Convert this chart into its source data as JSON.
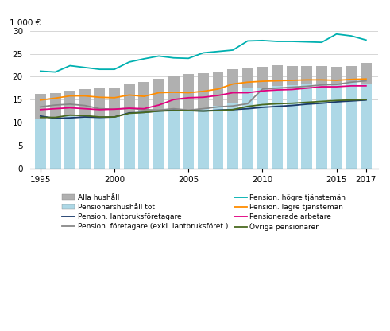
{
  "years": [
    1995,
    1996,
    1997,
    1998,
    1999,
    2000,
    2001,
    2002,
    2003,
    2004,
    2005,
    2006,
    2007,
    2008,
    2009,
    2010,
    2011,
    2012,
    2013,
    2014,
    2015,
    2016,
    2017
  ],
  "alla_hushall": [
    16.3,
    16.5,
    16.9,
    17.2,
    17.5,
    17.6,
    18.5,
    18.9,
    19.5,
    20.1,
    20.6,
    20.8,
    21.0,
    21.7,
    21.8,
    22.2,
    22.5,
    22.3,
    22.4,
    22.3,
    22.2,
    22.3,
    23.0
  ],
  "pensionshushall": [
    10.8,
    11.0,
    11.3,
    11.2,
    11.1,
    11.2,
    12.1,
    12.5,
    12.6,
    12.8,
    12.6,
    13.0,
    13.7,
    14.2,
    17.4,
    17.6,
    18.0,
    18.2,
    18.3,
    18.4,
    18.2,
    18.8,
    18.5
  ],
  "lantbruksforetagare": [
    11.4,
    10.9,
    11.0,
    11.2,
    11.1,
    11.2,
    12.1,
    12.2,
    12.5,
    12.7,
    12.6,
    12.5,
    12.7,
    12.8,
    13.0,
    13.3,
    13.5,
    13.7,
    14.0,
    14.2,
    14.5,
    14.7,
    14.9
  ],
  "foretagare": [
    13.4,
    13.8,
    14.0,
    13.7,
    13.0,
    12.9,
    13.1,
    12.8,
    12.7,
    13.0,
    12.7,
    13.0,
    13.4,
    13.6,
    14.1,
    17.3,
    17.5,
    17.7,
    17.9,
    18.2,
    18.3,
    18.8,
    19.1
  ],
  "hogre_tjansteman": [
    21.2,
    21.0,
    22.4,
    22.0,
    21.6,
    21.6,
    23.2,
    23.9,
    24.5,
    24.1,
    24.0,
    25.2,
    25.5,
    25.8,
    27.8,
    27.9,
    27.7,
    27.7,
    27.6,
    27.5,
    29.3,
    28.9,
    28.0
  ],
  "lagre_tjansteman": [
    14.9,
    15.3,
    15.8,
    15.8,
    15.5,
    15.4,
    16.0,
    15.7,
    16.5,
    16.6,
    16.5,
    16.8,
    17.3,
    18.4,
    18.8,
    19.0,
    19.1,
    19.2,
    19.3,
    19.3,
    19.2,
    19.4,
    19.5
  ],
  "pensionerade_arbetare": [
    12.8,
    13.0,
    13.2,
    13.0,
    12.8,
    12.9,
    13.1,
    13.0,
    13.8,
    15.0,
    15.4,
    15.5,
    15.9,
    16.5,
    16.5,
    16.9,
    17.1,
    17.2,
    17.5,
    17.8,
    17.8,
    18.0,
    18.0
  ],
  "ovriga": [
    11.1,
    11.1,
    11.6,
    11.5,
    11.2,
    11.2,
    12.0,
    12.2,
    12.5,
    12.6,
    12.6,
    12.5,
    12.6,
    12.8,
    13.5,
    13.9,
    14.1,
    14.2,
    14.4,
    14.6,
    14.8,
    14.9,
    15.0
  ],
  "bar_color_alla": "#b0b0b0",
  "bar_color_pension": "#add8e6",
  "color_lantbruk": "#1a3a6b",
  "color_foretagare": "#888888",
  "color_hogre": "#00b0b0",
  "color_lagre": "#ff8c00",
  "color_arbetare": "#e0007f",
  "color_ovriga": "#4a6a20",
  "ylim": [
    0,
    30
  ],
  "yticks": [
    0,
    5,
    10,
    15,
    20,
    25,
    30
  ],
  "ylabel": "1 000 €",
  "xticks": [
    1995,
    2000,
    2005,
    2010,
    2015,
    2017
  ]
}
